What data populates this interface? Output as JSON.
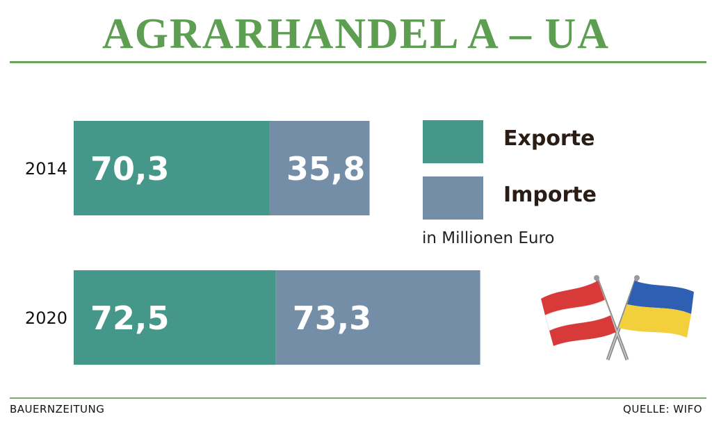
{
  "title": "AGRARHANDEL A – UA",
  "legend": {
    "exports_label": "Exporte",
    "imports_label": "Importe",
    "unit": "in Millionen Euro"
  },
  "footer": {
    "source_left": "BAUERNZEITUNG",
    "source_right": "QUELLE: WIFO"
  },
  "colors": {
    "exports": "#45978a",
    "imports": "#738ea6",
    "accent": "#5e9e52",
    "flag_red": "#d83a3a",
    "flag_white": "#ffffff",
    "flag_blue": "#2f5fb3",
    "flag_yellow": "#f2cf3b"
  },
  "chart_data": {
    "type": "bar",
    "orientation": "horizontal",
    "stacked": true,
    "categories": [
      "2014",
      "2020"
    ],
    "series": [
      {
        "name": "Exporte",
        "values": [
          70.3,
          72.5
        ],
        "labels": [
          "70,3",
          "72,5"
        ]
      },
      {
        "name": "Importe",
        "values": [
          35.8,
          73.3
        ],
        "labels": [
          "35,8",
          "73,3"
        ]
      }
    ],
    "grid": false,
    "legend_position": "right"
  }
}
